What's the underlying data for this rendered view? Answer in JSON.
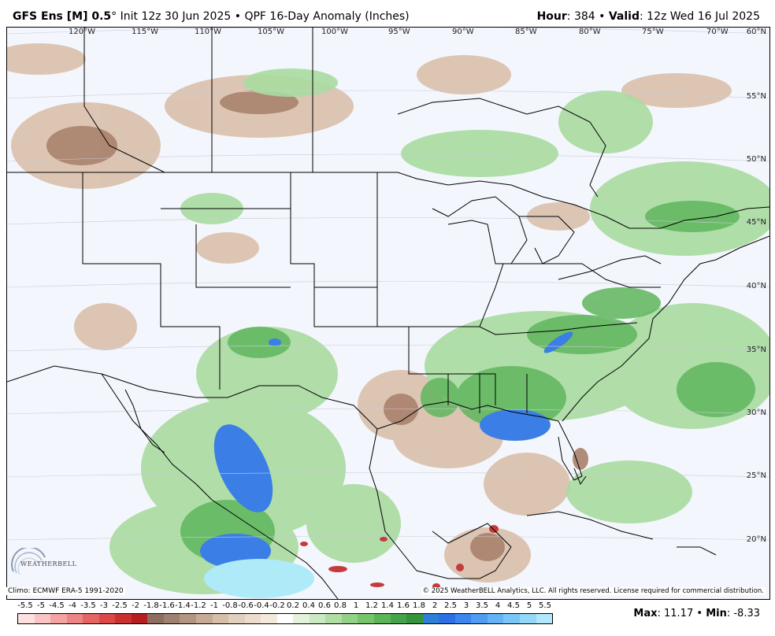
{
  "header": {
    "model": "GFS Ens [M] 0.5",
    "degree": "°",
    "init": "Init 12z 30 Jun 2025",
    "bullet": "•",
    "product": "QPF 16-Day Anomaly (Inches)",
    "hour_label": "Hour",
    "hour_value": ": 384",
    "valid_label": "Valid",
    "valid_value": ": 12z Wed 16 Jul 2025"
  },
  "map": {
    "lon_labels": [
      "120°W",
      "115°W",
      "110°W",
      "105°W",
      "100°W",
      "95°W",
      "90°W",
      "85°W",
      "80°W",
      "75°W",
      "70°W"
    ],
    "lat_labels": [
      "60°N",
      "55°N",
      "50°N",
      "45°N",
      "40°N",
      "35°N",
      "30°N",
      "25°N",
      "20°N"
    ],
    "climo": "Climo: ECMWF ERA-5 1991-2020",
    "copyright": "© 2025 WeatherBELL Analytics, LLC. All rights reserved. License required for commercial distribution.",
    "logo_text": "WEATHERBELL"
  },
  "legend": {
    "labels": [
      "-5.5",
      "-5",
      "-4.5",
      "-4",
      "-3.5",
      "-3",
      "-2.5",
      "-2",
      "-1.8",
      "-1.6",
      "-1.4",
      "-1.2",
      "-1",
      "-0.8",
      "-0.6",
      "-0.4",
      "-0.2",
      "0.2",
      "0.4",
      "0.6",
      "0.8",
      "1",
      "1.2",
      "1.4",
      "1.6",
      "1.8",
      "2",
      "2.5",
      "3",
      "3.5",
      "4",
      "4.5",
      "5",
      "5.5"
    ],
    "colors": [
      "#fde0e0",
      "#f9c4c4",
      "#f4a3a3",
      "#ee8585",
      "#e56565",
      "#da4848",
      "#c93131",
      "#b41f1f",
      "#8e6e60",
      "#a08070",
      "#b49582",
      "#c6ab97",
      "#d6bea9",
      "#e2cfbe",
      "#ecdccd",
      "#f4e9dd",
      "#ffffff",
      "#e4f3de",
      "#cbe9c2",
      "#b0dea5",
      "#94d188",
      "#77c46d",
      "#5bb458",
      "#45a349",
      "#35923d",
      "#2e7fd6",
      "#2d6fe6",
      "#3c86f0",
      "#4f9df3",
      "#63b3f5",
      "#7ac7f7",
      "#93d8f8",
      "#b2e8fb"
    ],
    "max_label": "Max",
    "max_value": ": 11.17",
    "sep": "•",
    "min_label": "Min",
    "min_value": ": -8.33"
  }
}
